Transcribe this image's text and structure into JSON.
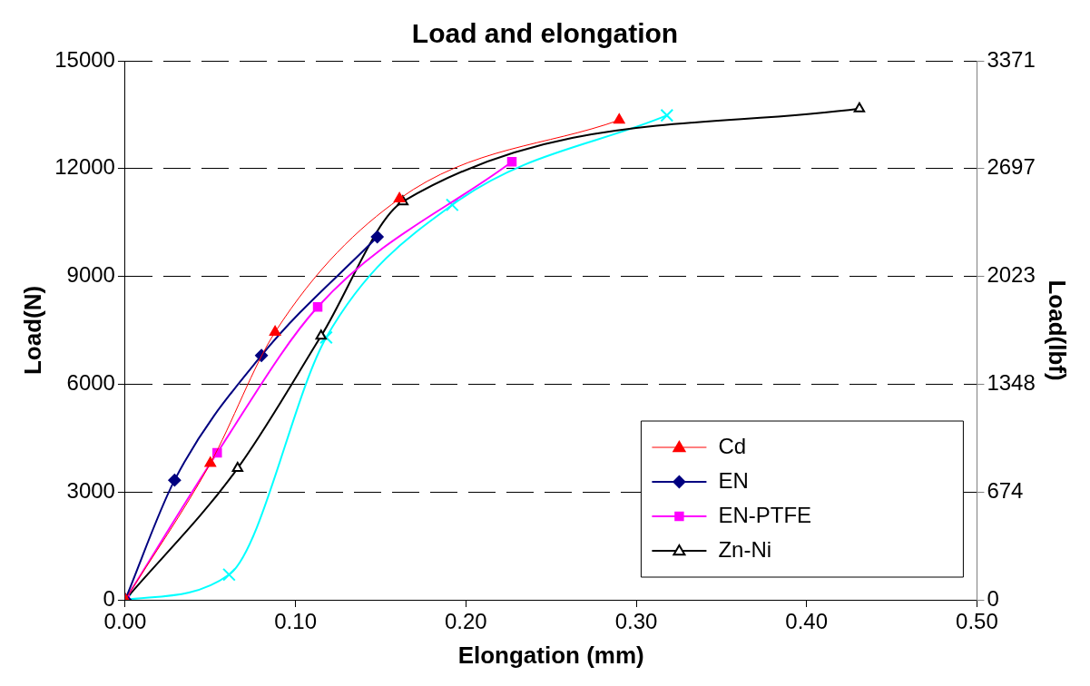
{
  "chart_data": {
    "type": "line",
    "title": "Load and elongation",
    "xlabel": "Elongation (mm)",
    "ylabel": "Load(N)",
    "y2label": "Load(lbf)",
    "xlim": [
      0,
      0.5
    ],
    "xticks": [
      {
        "value": 0,
        "label": "0.00"
      },
      {
        "value": 0.1,
        "label": "0.10"
      },
      {
        "value": 0.2,
        "label": "0.20"
      },
      {
        "value": 0.3,
        "label": "0.30"
      },
      {
        "value": 0.4,
        "label": "0.40"
      },
      {
        "value": 0.5,
        "label": "0.50"
      }
    ],
    "ylim": [
      0,
      15000
    ],
    "yticks": [
      0,
      3000,
      6000,
      9000,
      12000,
      15000
    ],
    "y2lim": [
      0,
      3371
    ],
    "y2ticks": [
      0,
      674,
      1348,
      2023,
      2697,
      3371
    ],
    "grid": "y",
    "legend": "bottom right",
    "series": [
      {
        "name": "Cd",
        "color": "#ff0000",
        "marker": "triangle",
        "x": [
          0,
          0.05,
          0.088,
          0.161,
          0.29
        ],
        "values": [
          0,
          3800,
          7450,
          11160,
          13350
        ]
      },
      {
        "name": "EN",
        "color": "#000080",
        "marker": "diamond",
        "x": [
          0,
          0.029,
          0.08,
          0.148
        ],
        "values": [
          0,
          3330,
          6800,
          10100
        ]
      },
      {
        "name": "EN-PTFE",
        "color": "#ff00ff",
        "marker": "square",
        "x": [
          0,
          0.054,
          0.113,
          0.227
        ],
        "values": [
          0,
          4090,
          8150,
          12190
        ]
      },
      {
        "name": "Zn-Ni",
        "color": "#000000",
        "marker": "triangle",
        "x": [
          0,
          0.066,
          0.115,
          0.163,
          0.431
        ],
        "values": [
          0,
          3660,
          7340,
          11080,
          13670
        ]
      },
      {
        "color": "#00ffff",
        "marker": "cross",
        "x": [
          0,
          0.061,
          0.118,
          0.192,
          0.318
        ],
        "values": [
          0,
          700,
          7300,
          10990,
          13480
        ]
      }
    ]
  }
}
